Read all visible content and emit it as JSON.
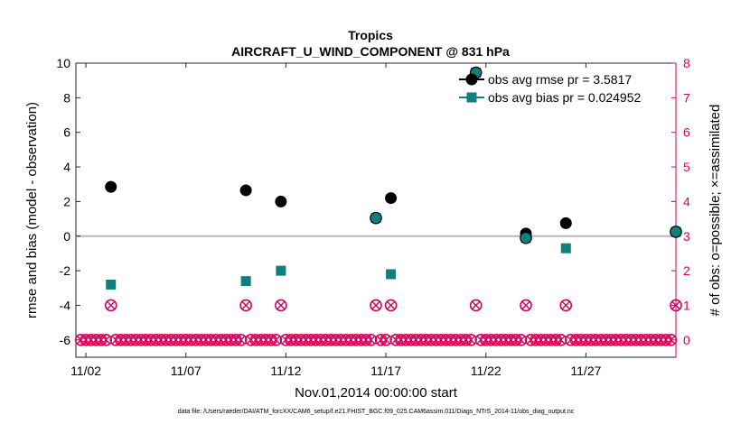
{
  "chart_data": {
    "type": "scatter",
    "title": "Tropics",
    "subtitle": "AIRCRAFT_U_WIND_COMPONENT @ 831 hPa",
    "xlabel": "Nov.01,2014 00:00:00 start",
    "ylabel": "rmse and bias (model - observation)",
    "y2label": "# of obs: o=possible; ×=assimilated",
    "footnote": "data file: /Users/raeder/DAI/ATM_forcXX/CAM6_setup/f.e21.FHIST_BGC.f09_025.CAM6assim.011/Diags_NTrS_2014-11/obs_diag_output.nc",
    "xlim": [
      1.5,
      31.5
    ],
    "ylim": [
      -7,
      10
    ],
    "y2lim": [
      -0.5,
      8
    ],
    "xticks": [
      2,
      7,
      12,
      17,
      22,
      27
    ],
    "xtick_labels": [
      "11/02",
      "11/07",
      "11/12",
      "11/17",
      "11/22",
      "11/27"
    ],
    "yticks": [
      -6,
      -4,
      -2,
      0,
      2,
      4,
      6,
      8,
      10
    ],
    "y2ticks": [
      0,
      1,
      2,
      3,
      4,
      5,
      6,
      7,
      8
    ],
    "zero_line": 0,
    "colors": {
      "rmse": "#000000",
      "bias": "#0f7f7f",
      "obs": "#d9005b",
      "zero": "#b8b8b8"
    },
    "legend": {
      "placement": "top-right",
      "entries": [
        "obs avg rmse pr = 3.5817",
        "obs avg bias pr = 0.024952"
      ]
    },
    "series": [
      {
        "name": "obs avg rmse pr = 3.5817",
        "axis": "left",
        "marker": "circle",
        "x": [
          3.25,
          10.0,
          11.75,
          16.5,
          17.25,
          21.5,
          24.0,
          26.0,
          31.5
        ],
        "y": [
          2.85,
          2.65,
          2.0,
          1.05,
          2.2,
          9.45,
          0.15,
          0.75,
          0.25
        ]
      },
      {
        "name": "obs avg bias pr = 0.024952",
        "axis": "left",
        "marker": "square",
        "x": [
          3.25,
          10.0,
          11.75,
          16.5,
          17.25,
          21.5,
          24.0,
          26.0,
          31.5
        ],
        "y": [
          -2.8,
          -2.6,
          -2.0,
          1.05,
          -2.2,
          9.45,
          -0.1,
          -0.7,
          0.25
        ]
      },
      {
        "name": "obs possible",
        "axis": "right",
        "marker": "circle-open",
        "x": [
          1.75,
          2.0,
          2.25,
          2.5,
          2.75,
          3.0,
          3.25,
          3.5,
          3.75,
          4.0,
          4.25,
          4.5,
          4.75,
          5.0,
          5.25,
          5.5,
          5.75,
          6.0,
          6.25,
          6.5,
          6.75,
          7.0,
          7.25,
          7.5,
          7.75,
          8.0,
          8.25,
          8.5,
          8.75,
          9.0,
          9.25,
          9.5,
          9.75,
          10.0,
          10.25,
          10.5,
          10.75,
          11.0,
          11.25,
          11.5,
          11.75,
          12.0,
          12.25,
          12.5,
          12.75,
          13.0,
          13.25,
          13.5,
          13.75,
          14.0,
          14.25,
          14.5,
          14.75,
          15.0,
          15.25,
          15.5,
          15.75,
          16.0,
          16.25,
          16.5,
          16.75,
          17.0,
          17.25,
          17.5,
          17.75,
          18.0,
          18.25,
          18.5,
          18.75,
          19.0,
          19.25,
          19.5,
          19.75,
          20.0,
          20.25,
          20.5,
          20.75,
          21.0,
          21.25,
          21.5,
          21.75,
          22.0,
          22.25,
          22.5,
          22.75,
          23.0,
          23.25,
          23.5,
          23.75,
          24.0,
          24.25,
          24.5,
          24.75,
          25.0,
          25.25,
          25.5,
          25.75,
          26.0,
          26.25,
          26.5,
          26.75,
          27.0,
          27.25,
          27.5,
          27.75,
          28.0,
          28.25,
          28.5,
          28.75,
          29.0,
          29.25,
          29.5,
          29.75,
          30.0,
          30.25,
          30.5,
          30.75,
          31.0,
          31.25,
          31.5
        ],
        "y": [
          0,
          0,
          0,
          0,
          0,
          0,
          1,
          0,
          0,
          0,
          0,
          0,
          0,
          0,
          0,
          0,
          0,
          0,
          0,
          0,
          0,
          0,
          0,
          0,
          0,
          0,
          0,
          0,
          0,
          0,
          0,
          0,
          0,
          1,
          0,
          0,
          0,
          0,
          0,
          0,
          1,
          0,
          0,
          0,
          0,
          0,
          0,
          0,
          0,
          0,
          0,
          0,
          0,
          0,
          0,
          0,
          0,
          0,
          0,
          1,
          0,
          0,
          1,
          0,
          0,
          0,
          0,
          0,
          0,
          0,
          0,
          0,
          0,
          0,
          0,
          0,
          0,
          0,
          0,
          1,
          0,
          0,
          0,
          0,
          0,
          0,
          0,
          0,
          0,
          1,
          0,
          0,
          0,
          0,
          0,
          0,
          0,
          1,
          0,
          0,
          0,
          0,
          0,
          0,
          0,
          0,
          0,
          0,
          0,
          0,
          0,
          0,
          0,
          0,
          0,
          0,
          0,
          0,
          0,
          1
        ]
      },
      {
        "name": "obs assimilated",
        "axis": "right",
        "marker": "x",
        "x": [
          1.75,
          2.0,
          2.25,
          2.5,
          2.75,
          3.0,
          3.25,
          3.5,
          3.75,
          4.0,
          4.25,
          4.5,
          4.75,
          5.0,
          5.25,
          5.5,
          5.75,
          6.0,
          6.25,
          6.5,
          6.75,
          7.0,
          7.25,
          7.5,
          7.75,
          8.0,
          8.25,
          8.5,
          8.75,
          9.0,
          9.25,
          9.5,
          9.75,
          10.0,
          10.25,
          10.5,
          10.75,
          11.0,
          11.25,
          11.5,
          11.75,
          12.0,
          12.25,
          12.5,
          12.75,
          13.0,
          13.25,
          13.5,
          13.75,
          14.0,
          14.25,
          14.5,
          14.75,
          15.0,
          15.25,
          15.5,
          15.75,
          16.0,
          16.25,
          16.5,
          16.75,
          17.0,
          17.25,
          17.5,
          17.75,
          18.0,
          18.25,
          18.5,
          18.75,
          19.0,
          19.25,
          19.5,
          19.75,
          20.0,
          20.25,
          20.5,
          20.75,
          21.0,
          21.25,
          21.5,
          21.75,
          22.0,
          22.25,
          22.5,
          22.75,
          23.0,
          23.25,
          23.5,
          23.75,
          24.0,
          24.25,
          24.5,
          24.75,
          25.0,
          25.25,
          25.5,
          25.75,
          26.0,
          26.25,
          26.5,
          26.75,
          27.0,
          27.25,
          27.5,
          27.75,
          28.0,
          28.25,
          28.5,
          28.75,
          29.0,
          29.25,
          29.5,
          29.75,
          30.0,
          30.25,
          30.5,
          30.75,
          31.0,
          31.25,
          31.5
        ],
        "y": [
          0,
          0,
          0,
          0,
          0,
          0,
          1,
          0,
          0,
          0,
          0,
          0,
          0,
          0,
          0,
          0,
          0,
          0,
          0,
          0,
          0,
          0,
          0,
          0,
          0,
          0,
          0,
          0,
          0,
          0,
          0,
          0,
          0,
          1,
          0,
          0,
          0,
          0,
          0,
          0,
          1,
          0,
          0,
          0,
          0,
          0,
          0,
          0,
          0,
          0,
          0,
          0,
          0,
          0,
          0,
          0,
          0,
          0,
          0,
          1,
          0,
          0,
          1,
          0,
          0,
          0,
          0,
          0,
          0,
          0,
          0,
          0,
          0,
          0,
          0,
          0,
          0,
          0,
          0,
          1,
          0,
          0,
          0,
          0,
          0,
          0,
          0,
          0,
          0,
          1,
          0,
          0,
          0,
          0,
          0,
          0,
          0,
          1,
          0,
          0,
          0,
          0,
          0,
          0,
          0,
          0,
          0,
          0,
          0,
          0,
          0,
          0,
          0,
          0,
          0,
          0,
          0,
          0,
          0,
          1
        ]
      }
    ]
  }
}
